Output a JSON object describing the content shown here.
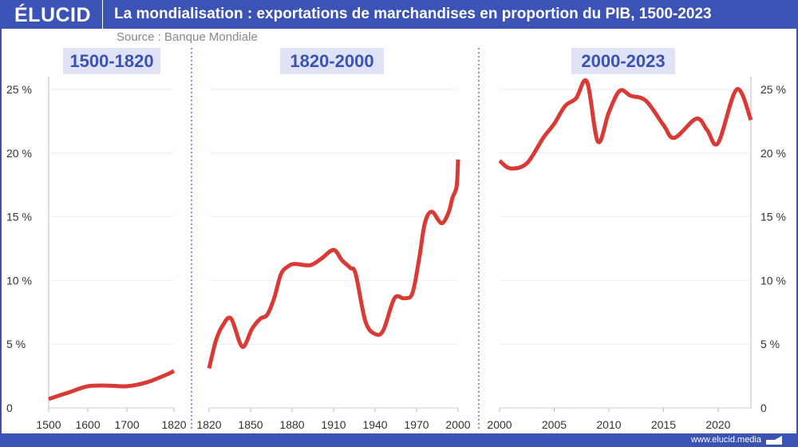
{
  "header": {
    "logo": "ÉLUCID",
    "title": "La mondialisation : exportations de marchandises en proportion du PIB, 1500-2023"
  },
  "source": "Source : Banque Mondiale",
  "footer": {
    "url": "www.elucid.media"
  },
  "colors": {
    "brand": "#3b53b4",
    "line": "#d93a35",
    "period_bg": "#dfe3f5"
  },
  "chart_data": [
    {
      "type": "line",
      "title": "1500-1820",
      "xlim": [
        1500,
        1820
      ],
      "ylim": [
        0,
        25
      ],
      "yticks": [
        "0",
        "5 %",
        "10 %",
        "15 %",
        "20 %",
        "25 %"
      ],
      "xticks": [
        "1500",
        "1600",
        "1700",
        "1820"
      ],
      "x": [
        1500,
        1550,
        1600,
        1650,
        1700,
        1750,
        1800,
        1820
      ],
      "y": [
        0.7,
        1.2,
        1.7,
        1.75,
        1.7,
        2.0,
        2.6,
        2.9
      ]
    },
    {
      "type": "line",
      "title": "1820-2000",
      "xlim": [
        1820,
        2000
      ],
      "ylim": [
        0,
        25
      ],
      "xticks": [
        "1820",
        "1850",
        "1880",
        "1910",
        "1940",
        "1970",
        "2000"
      ],
      "x": [
        1820,
        1825,
        1830,
        1836,
        1844,
        1851,
        1857,
        1862,
        1867,
        1872,
        1877,
        1882,
        1893,
        1901,
        1910,
        1916,
        1922,
        1926,
        1933,
        1940,
        1946,
        1954,
        1961,
        1967,
        1972,
        1976,
        1981,
        1988,
        1993,
        1996,
        1999,
        2000
      ],
      "y": [
        3.1,
        5.3,
        6.5,
        7.0,
        4.8,
        6.2,
        7.0,
        7.3,
        8.6,
        10.5,
        11.1,
        11.3,
        11.2,
        11.7,
        12.4,
        11.6,
        11.0,
        10.5,
        6.8,
        5.8,
        6.1,
        8.6,
        8.6,
        9.0,
        11.8,
        14.5,
        15.4,
        14.5,
        15.3,
        16.5,
        17.4,
        19.5
      ]
    },
    {
      "type": "line",
      "title": "2000-2023",
      "xlim": [
        2000,
        2023
      ],
      "ylim": [
        0,
        25
      ],
      "xticks": [
        "2000",
        "2005",
        "2010",
        "2015",
        "2020"
      ],
      "x": [
        2000,
        2001,
        2002.5,
        2004,
        2005,
        2006,
        2007,
        2008,
        2009,
        2010,
        2011,
        2012,
        2013.4,
        2015,
        2016,
        2018,
        2019,
        2020,
        2021.7,
        2023
      ],
      "y": [
        19.4,
        18.8,
        19.2,
        21.2,
        22.3,
        23.7,
        24.3,
        25.6,
        20.9,
        23.2,
        24.9,
        24.5,
        24.1,
        22.2,
        21.2,
        22.7,
        21.8,
        20.8,
        25.0,
        22.6
      ]
    }
  ]
}
